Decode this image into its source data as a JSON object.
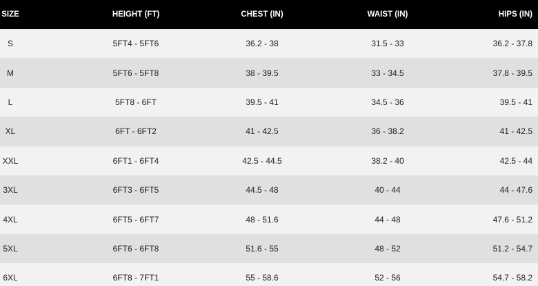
{
  "table": {
    "header": [
      "SIZE",
      "HEIGHT (FT)",
      "CHEST (IN)",
      "WAIST (IN)",
      "HIPS (IN)"
    ],
    "rows": [
      [
        "S",
        "5FT4 - 5FT6",
        "36.2 - 38",
        "31.5 - 33",
        "36.2 - 37.8"
      ],
      [
        "M",
        "5FT6 - 5FT8",
        "38 - 39.5",
        "33 - 34.5",
        "37.8 - 39.5"
      ],
      [
        "L",
        "5FT8 - 6FT",
        "39.5 - 41",
        "34.5 - 36",
        "39.5 - 41"
      ],
      [
        "XL",
        "6FT - 6FT2",
        "41 - 42.5",
        "36 - 38.2",
        "41 - 42.5"
      ],
      [
        "XXL",
        "6FT1 - 6FT4",
        "42.5 - 44.5",
        "38.2 - 40",
        "42.5 - 44"
      ],
      [
        "3XL",
        "6FT3 - 6FT5",
        "44.5 - 48",
        "40 - 44",
        "44 - 47.6"
      ],
      [
        "4XL",
        "6FT5 - 6FT7",
        "48 - 51.6",
        "44 - 48",
        "47.6 - 51.2"
      ],
      [
        "5XL",
        "6FT6 - 6FT8",
        "51.6 - 55",
        "48 - 52",
        "51.2 - 54.7"
      ],
      [
        "6XL",
        "6FT8 - 7FT1",
        "55 - 58.6",
        "52 - 56",
        "54.7 - 58.2"
      ]
    ]
  }
}
